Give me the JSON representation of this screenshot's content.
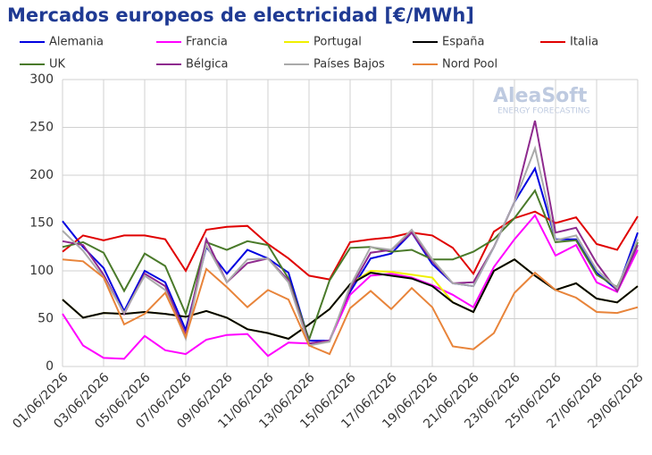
{
  "chart_data": {
    "type": "line",
    "title": "Mercados europeos de electricidad [€/MWh]",
    "logo": {
      "name": "AleaSoft",
      "tagline": "ENERGY FORECASTING"
    },
    "categories": [
      "01/06/2026",
      null,
      "03/06/2026",
      null,
      "05/06/2026",
      null,
      "07/06/2026",
      null,
      "09/06/2026",
      null,
      "11/06/2026",
      null,
      "13/06/2026",
      null,
      "15/06/2026",
      null,
      "17/06/2026",
      null,
      "19/06/2026",
      null,
      "21/06/2026",
      null,
      "23/06/2026",
      null,
      "25/06/2026",
      null,
      "27/06/2026",
      null,
      "29/06/2026"
    ],
    "ylim": [
      0,
      300
    ],
    "yticks": [
      0,
      50,
      100,
      150,
      200,
      250,
      300
    ],
    "grid": true,
    "series": [
      {
        "name": "Alemania",
        "color": "#0000e0",
        "values": [
          152,
          125,
          103,
          58,
          100,
          88,
          38,
          125,
          97,
          122,
          113,
          98,
          27,
          27,
          78,
          113,
          118,
          140,
          107,
          87,
          84,
          125,
          172,
          207,
          133,
          133,
          98,
          80,
          140
        ]
      },
      {
        "name": "Francia",
        "color": "#ff00ff",
        "values": [
          55,
          22,
          9,
          8,
          32,
          17,
          13,
          28,
          33,
          34,
          11,
          25,
          24,
          27,
          75,
          95,
          97,
          93,
          85,
          75,
          62,
          104,
          133,
          158,
          116,
          127,
          88,
          78,
          122
        ]
      },
      {
        "name": "Portugal",
        "color": "#f0f000",
        "values": [
          70,
          51,
          56,
          55,
          57,
          55,
          52,
          58,
          51,
          39,
          35,
          29,
          44,
          60,
          86,
          100,
          99,
          96,
          93,
          67,
          57,
          100,
          112,
          95,
          80,
          87,
          71,
          67,
          84
        ]
      },
      {
        "name": "España",
        "color": "#000000",
        "values": [
          70,
          51,
          56,
          55,
          57,
          55,
          52,
          58,
          51,
          39,
          35,
          29,
          44,
          60,
          86,
          98,
          95,
          92,
          84,
          67,
          57,
          100,
          112,
          95,
          80,
          87,
          71,
          67,
          84
        ]
      },
      {
        "name": "Italia",
        "color": "#e00000",
        "values": [
          120,
          137,
          132,
          137,
          137,
          133,
          100,
          143,
          146,
          147,
          128,
          113,
          95,
          91,
          130,
          133,
          135,
          140,
          137,
          124,
          97,
          141,
          155,
          162,
          150,
          156,
          128,
          122,
          157
        ]
      },
      {
        "name": "UK",
        "color": "#4a7a2a",
        "values": [
          125,
          130,
          119,
          79,
          118,
          105,
          55,
          130,
          122,
          131,
          127,
          92,
          28,
          90,
          124,
          125,
          120,
          122,
          112,
          112,
          120,
          133,
          155,
          184,
          130,
          132,
          96,
          83,
          130
        ]
      },
      {
        "name": "Bélgica",
        "color": "#8e2a8e",
        "values": [
          131,
          127,
          96,
          55,
          97,
          84,
          33,
          133,
          88,
          108,
          113,
          90,
          24,
          27,
          81,
          119,
          122,
          140,
          110,
          87,
          88,
          125,
          172,
          257,
          140,
          145,
          108,
          79,
          127
        ]
      },
      {
        "name": "Países Bajos",
        "color": "#aaaaaa",
        "values": [
          142,
          121,
          93,
          56,
          95,
          80,
          29,
          127,
          88,
          112,
          113,
          88,
          22,
          26,
          84,
          125,
          122,
          143,
          112,
          87,
          84,
          125,
          172,
          228,
          132,
          137,
          101,
          82,
          133
        ]
      },
      {
        "name": "Nord Pool",
        "color": "#e8843a",
        "values": [
          112,
          110,
          93,
          44,
          55,
          77,
          31,
          102,
          83,
          62,
          80,
          70,
          22,
          13,
          61,
          79,
          60,
          82,
          62,
          21,
          18,
          35,
          77,
          98,
          80,
          72,
          57,
          56,
          62
        ]
      }
    ]
  }
}
